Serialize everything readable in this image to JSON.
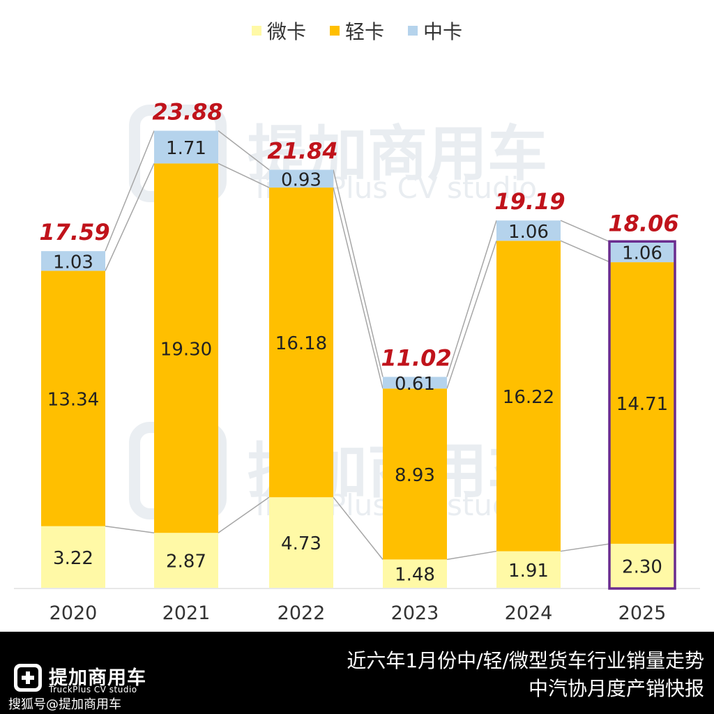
{
  "legend": {
    "items": [
      {
        "label": "微卡",
        "color": "#fff9a6"
      },
      {
        "label": "轻卡",
        "color": "#ffbf00"
      },
      {
        "label": "中卡",
        "color": "#b5d3ec"
      }
    ]
  },
  "watermark": {
    "brand": "提加商用车",
    "sub": "TruckPlus CV studio"
  },
  "footer": {
    "brand": "提加商用车",
    "brand_sub": "TruckPlus CV studio",
    "handle": "搜狐号@提加商用车",
    "title": "近六年1月份中/轻/微型货车行业销量走势",
    "subtitle": "中汽协月度产销快报"
  },
  "chart_data": {
    "type": "bar",
    "stacked": true,
    "categories": [
      "2020",
      "2021",
      "2022",
      "2023",
      "2024",
      "2025"
    ],
    "series": [
      {
        "name": "微卡",
        "color": "#fff9a6",
        "values": [
          3.22,
          2.87,
          4.73,
          1.48,
          1.91,
          2.3
        ]
      },
      {
        "name": "轻卡",
        "color": "#ffbf00",
        "values": [
          13.34,
          19.3,
          16.18,
          8.93,
          16.22,
          14.71
        ]
      },
      {
        "name": "中卡",
        "color": "#b5d3ec",
        "values": [
          1.03,
          1.71,
          0.93,
          0.61,
          1.06,
          1.06
        ]
      }
    ],
    "totals": [
      17.59,
      23.88,
      21.84,
      11.02,
      19.19,
      18.06
    ],
    "value_labels": [
      [
        "3.22",
        "2.87",
        "4.73",
        "1.48",
        "1.91",
        "2.30"
      ],
      [
        "13.34",
        "19.30",
        "16.18",
        "8.93",
        "16.22",
        "14.71"
      ],
      [
        "1.03",
        "1.71",
        "0.93",
        "0.61",
        "1.06",
        "1.06"
      ]
    ],
    "total_labels": [
      "17.59",
      "23.88",
      "21.84",
      "11.02",
      "19.19",
      "18.06"
    ],
    "total_label_color": "#c0131b",
    "highlight_category": "2025",
    "highlight_color": "#6a2c8f",
    "ylim": [
      0,
      26
    ],
    "grid": false,
    "legend_position": "top-center"
  }
}
